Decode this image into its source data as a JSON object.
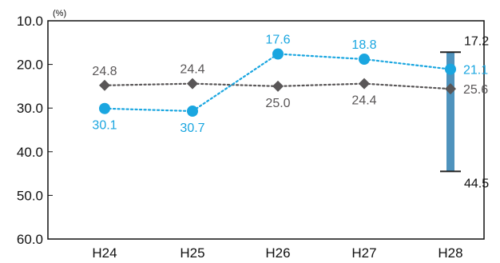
{
  "chart_data": {
    "type": "line",
    "unit_label": "(%)",
    "categories": [
      "H24",
      "H25",
      "H26",
      "H27",
      "H28"
    ],
    "y_ticks": [
      "10.0",
      "20.0",
      "30.0",
      "40.0",
      "50.0",
      "60.0"
    ],
    "ylim": [
      10,
      60
    ],
    "y_inverted": true,
    "grid": false,
    "series": [
      {
        "color": "#595657",
        "marker": "diamond",
        "line": "dotted",
        "values": [
          24.8,
          24.4,
          25.0,
          24.4,
          25.6
        ],
        "labels": [
          "24.8",
          "24.4",
          "25.0",
          "24.4",
          "25.6"
        ],
        "label_positions": [
          "above",
          "above",
          "below",
          "below",
          "right"
        ]
      },
      {
        "color": "#1aa6e0",
        "marker": "circle",
        "line": "dotted",
        "values": [
          30.1,
          30.7,
          17.6,
          18.8,
          21.1
        ],
        "labels": [
          "30.1",
          "30.7",
          "17.6",
          "18.8",
          "21.1"
        ],
        "label_positions": [
          "below",
          "below",
          "above",
          "above",
          "right"
        ]
      }
    ],
    "range_bar": {
      "category": "H28",
      "color": "#4f93bd",
      "min": 17.2,
      "max": 44.5,
      "min_label": "17.2",
      "max_label": "44.5"
    }
  }
}
